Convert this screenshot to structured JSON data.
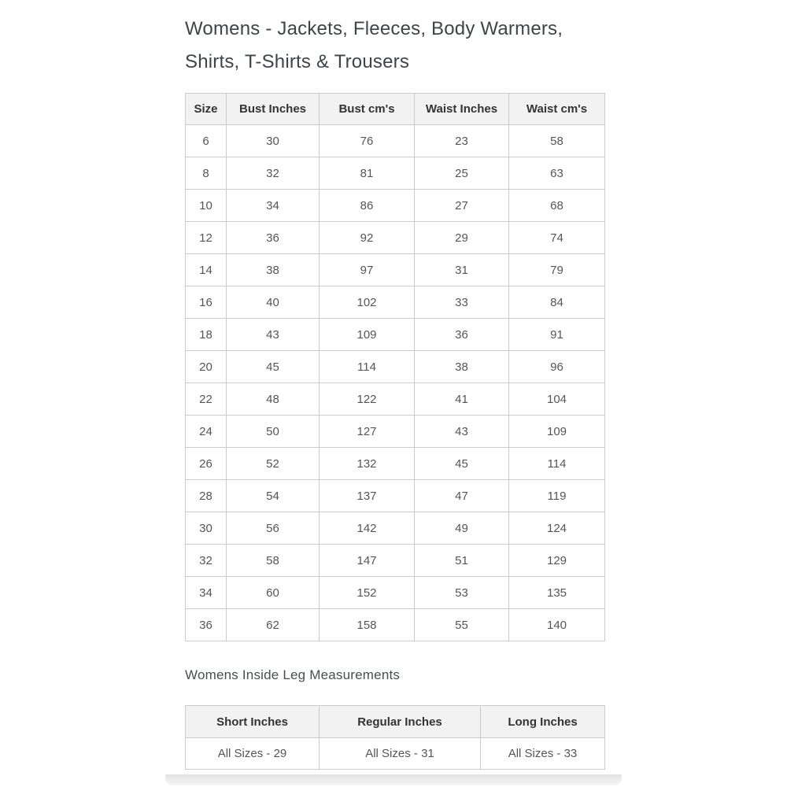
{
  "page": {
    "title": "Womens - Jackets, Fleeces, Body Warmers, Shirts, T-Shirts & Trousers",
    "subtitle": "Womens Inside Leg Measurements"
  },
  "size_table": {
    "headers": [
      "Size",
      "Bust Inches",
      "Bust cm's",
      "Waist Inches",
      "Waist cm's"
    ],
    "rows": [
      [
        "6",
        "30",
        "76",
        "23",
        "58"
      ],
      [
        "8",
        "32",
        "81",
        "25",
        "63"
      ],
      [
        "10",
        "34",
        "86",
        "27",
        "68"
      ],
      [
        "12",
        "36",
        "92",
        "29",
        "74"
      ],
      [
        "14",
        "38",
        "97",
        "31",
        "79"
      ],
      [
        "16",
        "40",
        "102",
        "33",
        "84"
      ],
      [
        "18",
        "43",
        "109",
        "36",
        "91"
      ],
      [
        "20",
        "45",
        "114",
        "38",
        "96"
      ],
      [
        "22",
        "48",
        "122",
        "41",
        "104"
      ],
      [
        "24",
        "50",
        "127",
        "43",
        "109"
      ],
      [
        "26",
        "52",
        "132",
        "45",
        "114"
      ],
      [
        "28",
        "54",
        "137",
        "47",
        "119"
      ],
      [
        "30",
        "56",
        "142",
        "49",
        "124"
      ],
      [
        "32",
        "58",
        "147",
        "51",
        "129"
      ],
      [
        "34",
        "60",
        "152",
        "53",
        "135"
      ],
      [
        "36",
        "62",
        "158",
        "55",
        "140"
      ]
    ]
  },
  "leg_table": {
    "headers": [
      "Short Inches",
      "Regular Inches",
      "Long Inches"
    ],
    "rows": [
      [
        "All Sizes - 29",
        "All Sizes - 31",
        "All Sizes - 33"
      ]
    ]
  },
  "colors": {
    "header_bg": "#f2f2f2",
    "border": "#cbcbcb",
    "header_text": "#333333",
    "cell_text": "#555555",
    "title_text": "#3f4448",
    "page_bg": "#ffffff"
  }
}
